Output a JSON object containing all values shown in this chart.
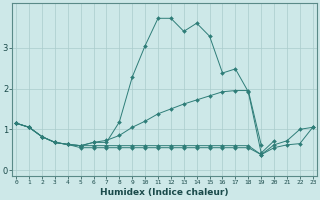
{
  "xlabel": "Humidex (Indice chaleur)",
  "background_color": "#cde8e8",
  "grid_color": "#aacccc",
  "line_color": "#2e7d78",
  "x_ticks": [
    0,
    1,
    2,
    3,
    4,
    5,
    6,
    7,
    8,
    9,
    10,
    11,
    12,
    13,
    14,
    15,
    16,
    17,
    18,
    19,
    20,
    21,
    22,
    23
  ],
  "y_ticks": [
    0,
    1,
    2,
    3
  ],
  "xlim": [
    -0.3,
    23.3
  ],
  "ylim": [
    -0.15,
    4.1
  ],
  "series": [
    {
      "x": [
        0,
        1,
        2,
        3,
        4,
        5,
        6,
        7,
        8,
        9,
        10,
        11,
        12,
        13,
        14,
        15,
        16,
        17,
        18,
        19,
        20
      ],
      "y": [
        1.15,
        1.05,
        0.82,
        0.68,
        0.63,
        0.6,
        0.68,
        0.68,
        1.18,
        2.28,
        3.05,
        3.72,
        3.72,
        3.4,
        3.6,
        3.28,
        2.38,
        2.48,
        1.92,
        0.42,
        0.72
      ]
    },
    {
      "x": [
        0,
        1,
        2,
        3,
        4,
        5,
        6,
        7,
        8,
        9,
        10,
        11,
        12,
        13,
        14,
        15,
        16,
        17,
        18,
        19
      ],
      "y": [
        1.15,
        1.05,
        0.82,
        0.68,
        0.63,
        0.6,
        0.68,
        0.73,
        0.85,
        1.05,
        1.2,
        1.38,
        1.5,
        1.62,
        1.72,
        1.82,
        1.92,
        1.95,
        1.95,
        0.62
      ]
    },
    {
      "x": [
        0,
        1,
        2,
        3,
        4,
        5,
        6,
        7,
        8,
        9,
        10,
        11,
        12,
        13,
        14,
        15,
        16,
        17,
        18,
        19,
        20,
        21,
        22,
        23
      ],
      "y": [
        1.15,
        1.05,
        0.82,
        0.68,
        0.63,
        0.6,
        0.6,
        0.6,
        0.6,
        0.6,
        0.6,
        0.6,
        0.6,
        0.6,
        0.6,
        0.6,
        0.6,
        0.6,
        0.6,
        0.38,
        0.62,
        0.72,
        1.0,
        1.05
      ]
    },
    {
      "x": [
        0,
        1,
        2,
        3,
        4,
        5,
        6,
        7,
        8,
        9,
        10,
        11,
        12,
        13,
        14,
        15,
        16,
        17,
        18,
        19,
        20,
        21,
        22,
        23
      ],
      "y": [
        1.15,
        1.05,
        0.82,
        0.68,
        0.63,
        0.55,
        0.55,
        0.55,
        0.55,
        0.55,
        0.55,
        0.55,
        0.55,
        0.55,
        0.55,
        0.55,
        0.55,
        0.55,
        0.55,
        0.38,
        0.55,
        0.62,
        0.65,
        1.05
      ]
    }
  ]
}
